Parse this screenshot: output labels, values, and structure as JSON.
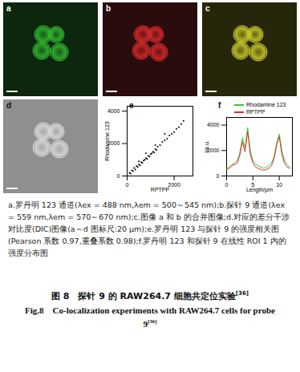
{
  "panels": [
    {
      "label": "a",
      "color": "#2fb82f",
      "background": "#0d260e"
    },
    {
      "label": "b",
      "color": "#d62a2a",
      "background": "#2a0c0c"
    },
    {
      "label": "c",
      "color": "#c9c92a",
      "background": "#26260b"
    },
    {
      "label": "d",
      "color": "#d8d8d8",
      "background": "#8f8f8f"
    }
  ],
  "chart_data": [
    {
      "type": "scatter",
      "annotations": [
        "e"
      ],
      "xlabel": "RPTPP",
      "ylabel": "Rhodamine 123",
      "x": [
        100,
        150,
        200,
        250,
        300,
        350,
        400,
        450,
        500,
        550,
        600,
        650,
        700,
        750,
        800,
        850,
        900,
        950,
        1000,
        1050,
        1100,
        1150,
        1200,
        1250,
        1300,
        1400,
        1500,
        1600,
        1700,
        1800,
        1900,
        2000,
        2100,
        2200,
        2300,
        2400,
        500,
        800,
        1200,
        1600
      ],
      "y": [
        200,
        150,
        350,
        300,
        500,
        400,
        600,
        550,
        700,
        650,
        850,
        800,
        950,
        1000,
        1100,
        1050,
        1250,
        1200,
        1350,
        1400,
        1500,
        1450,
        1650,
        1600,
        1800,
        1900,
        2100,
        2200,
        2300,
        2500,
        2600,
        2700,
        2900,
        3000,
        3200,
        3400,
        900,
        1400,
        1900,
        2600
      ],
      "color": "#000000",
      "xlim": [
        0,
        2800
      ],
      "ylim": [
        0,
        4300
      ],
      "xticks": [
        0,
        2000
      ],
      "yticks": [
        0,
        2000,
        4000
      ]
    },
    {
      "type": "line",
      "annotations": [
        "f"
      ],
      "xlabel": "Length/μm",
      "ylabel": "I/a.u.",
      "legend": "top",
      "x": [
        0,
        0.5,
        1,
        1.5,
        2,
        2.5,
        3,
        3.5,
        4,
        4.5,
        5,
        5.5,
        6,
        6.5,
        7,
        7.5,
        8,
        8.5,
        9,
        9.5,
        10,
        10.5,
        11,
        11.5,
        12
      ],
      "series": [
        {
          "name": "Rhodamine 123",
          "color": "#33cc33",
          "values": [
            600,
            700,
            900,
            1000,
            1200,
            1800,
            3000,
            2200,
            3800,
            2000,
            1200,
            900,
            800,
            700,
            600,
            700,
            800,
            1000,
            1500,
            2600,
            3300,
            2000,
            1200,
            900,
            700
          ]
        },
        {
          "name": "RPTPP",
          "color": "#e03030",
          "values": [
            500,
            600,
            800,
            900,
            1000,
            1600,
            2700,
            1900,
            3500,
            1700,
            1000,
            700,
            600,
            500,
            450,
            500,
            600,
            800,
            1300,
            2400,
            3100,
            1700,
            1000,
            700,
            600
          ]
        }
      ],
      "xlim": [
        0,
        12.5
      ],
      "ylim": [
        0,
        4600
      ],
      "xticks": [
        0,
        5,
        10
      ],
      "yticks": [
        0,
        2000,
        4000
      ]
    }
  ],
  "caption": "a.罗丹明 123 通道(λex = 488 nm,λem = 500～545 nm);b.探针 9 通道(λex = 559 nm,λem = 570～670 nm);c.图像 a 和 b 的合并图像;d.对应的差分干涉对比度(DIC)图像(a～d 图标尺:20 μm);e.罗丹明 123 与探针 9 的强度相关图(Pearson 系数 0.97,重叠系数 0.98);f.罗丹明 123 和探针 9 在线性 ROI 1 内的强度分布图",
  "figure_title": {
    "zh": "图 8　探针 9 的 RAW264.7 细胞共定位实验",
    "en": "Fig.8　Co-localization experiments with RAW264.7 cells for probe 9",
    "ref": "[36]"
  }
}
